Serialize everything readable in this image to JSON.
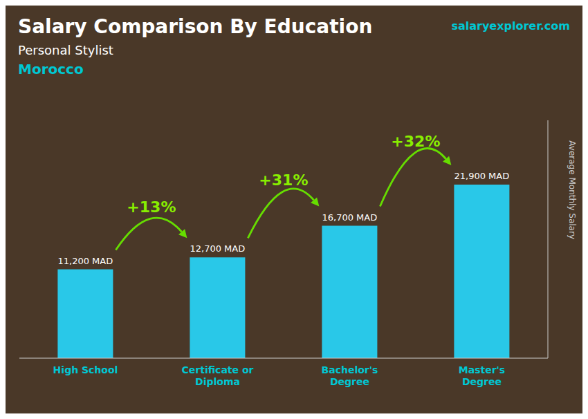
{
  "chart_data": {
    "type": "bar",
    "title": "Salary Comparison By Education",
    "subtitle": "Personal Stylist",
    "ylabel": "Average Monthly Salary",
    "categories": [
      "High School",
      "Certificate or\nDiploma",
      "Bachelor's\nDegree",
      "Master's\nDegree"
    ],
    "values": [
      11200,
      12700,
      16700,
      21900
    ],
    "value_labels": [
      "11,200 MAD",
      "12,700 MAD",
      "16,700 MAD",
      "21,900 MAD"
    ],
    "data_labels": true,
    "color": "#29c8e8",
    "ylim": [
      0,
      30000
    ],
    "yticks": [],
    "tick_labels": "x",
    "grid": false,
    "annotations": [
      {
        "text": "Morocco"
      },
      {
        "text": "salaryexplorer.com"
      },
      {
        "text": "+13%",
        "from": "High School",
        "to": "Certificate or\nDiploma"
      },
      {
        "text": "+31%",
        "from": "Certificate or\nDiploma",
        "to": "Bachelor's\nDegree"
      },
      {
        "text": "+32%",
        "from": "Bachelor's\nDegree",
        "to": "Master's\nDegree"
      }
    ]
  }
}
